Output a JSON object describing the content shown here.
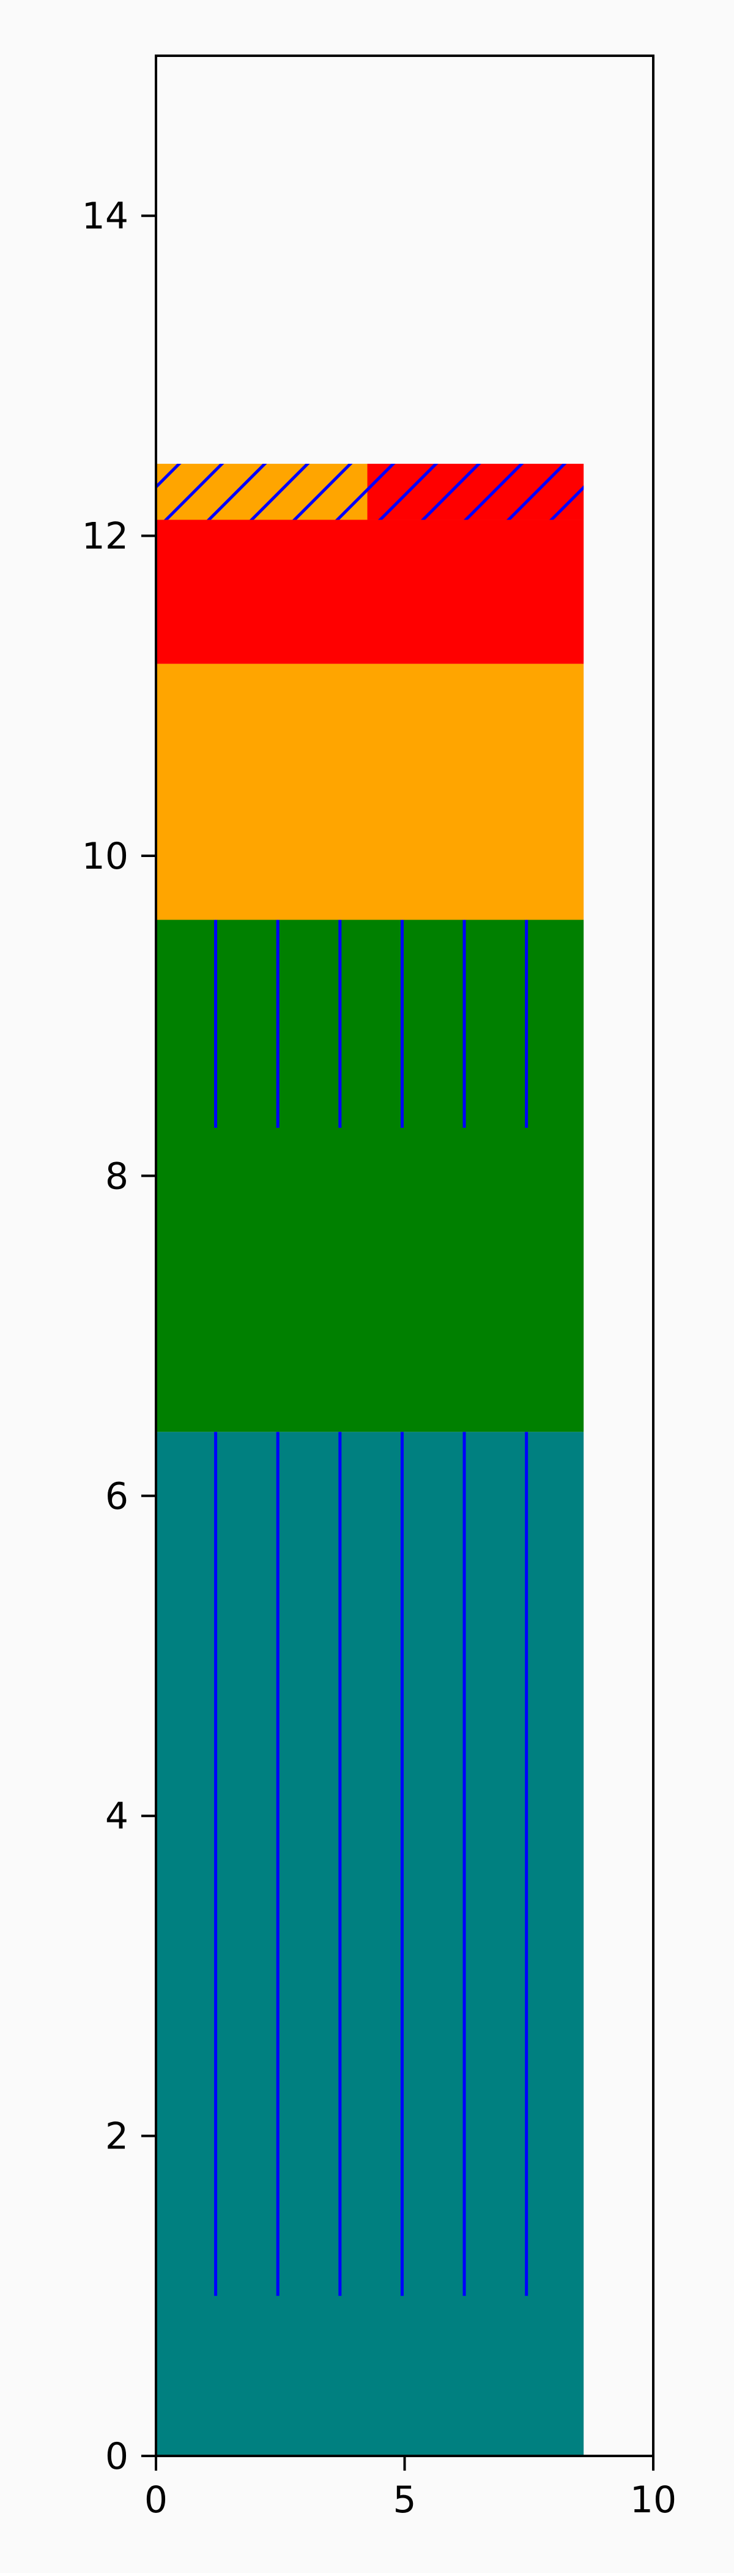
{
  "chart_data": {
    "type": "bar",
    "title": "",
    "xlabel": "",
    "ylabel": "",
    "xlim": [
      0,
      10
    ],
    "ylim": [
      0,
      15
    ],
    "xticks": [
      0,
      5,
      10
    ],
    "xtick_labels": [
      "0",
      "5",
      "10"
    ],
    "yticks": [
      0,
      2,
      4,
      6,
      8,
      10,
      12,
      14
    ],
    "ytick_labels": [
      "0",
      "2",
      "4",
      "6",
      "8",
      "10",
      "12",
      "14"
    ],
    "grid": false,
    "legend": "none",
    "blocks": [
      {
        "x0": 0,
        "x1": 8.6,
        "y0": 0,
        "y1": 6.4,
        "color": "#008080"
      },
      {
        "x0": 0,
        "x1": 8.6,
        "y0": 6.4,
        "y1": 9.6,
        "color": "#008000"
      },
      {
        "x0": 0,
        "x1": 8.6,
        "y0": 9.6,
        "y1": 11.2,
        "color": "#FFA500"
      },
      {
        "x0": 0,
        "x1": 8.6,
        "y0": 11.2,
        "y1": 12.1,
        "color": "#FF0000"
      },
      {
        "x0": 0,
        "x1": 4.25,
        "y0": 12.1,
        "y1": 12.45,
        "color": "#FFA500",
        "hatch": "diagonal",
        "hatch_color": "#0000FF"
      },
      {
        "x0": 4.25,
        "x1": 8.6,
        "y0": 12.1,
        "y1": 12.45,
        "color": "#FF0000",
        "hatch": "diagonal",
        "hatch_color": "#0000FF"
      }
    ],
    "vertical_lines": [
      {
        "x": 1.2,
        "y0": 1.0,
        "y1": 6.4,
        "color": "#0000FF"
      },
      {
        "x": 2.45,
        "y0": 1.0,
        "y1": 6.4,
        "color": "#0000FF"
      },
      {
        "x": 3.7,
        "y0": 1.0,
        "y1": 6.4,
        "color": "#0000FF"
      },
      {
        "x": 4.95,
        "y0": 1.0,
        "y1": 6.4,
        "color": "#0000FF"
      },
      {
        "x": 6.2,
        "y0": 1.0,
        "y1": 6.4,
        "color": "#0000FF"
      },
      {
        "x": 7.45,
        "y0": 1.0,
        "y1": 6.4,
        "color": "#0000FF"
      },
      {
        "x": 1.2,
        "y0": 8.3,
        "y1": 9.6,
        "color": "#0000FF"
      },
      {
        "x": 2.45,
        "y0": 8.3,
        "y1": 9.6,
        "color": "#0000FF"
      },
      {
        "x": 3.7,
        "y0": 8.3,
        "y1": 9.6,
        "color": "#0000FF"
      },
      {
        "x": 4.95,
        "y0": 8.3,
        "y1": 9.6,
        "color": "#0000FF"
      },
      {
        "x": 6.2,
        "y0": 8.3,
        "y1": 9.6,
        "color": "#0000FF"
      },
      {
        "x": 7.45,
        "y0": 8.3,
        "y1": 9.6,
        "color": "#0000FF"
      }
    ]
  }
}
